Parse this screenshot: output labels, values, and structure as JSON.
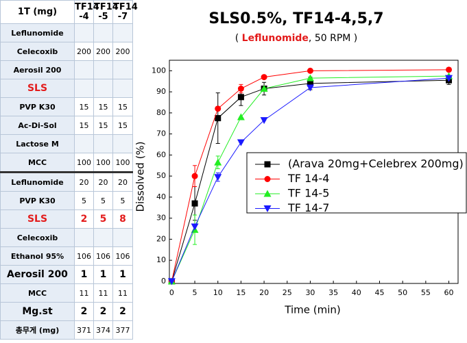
{
  "table": {
    "header": [
      "1T (mg)",
      "TF14\n-4",
      "TF14\n-5",
      "TF14\n-7"
    ],
    "rows": [
      {
        "label": "Leflunomide"
      },
      {
        "label": "Celecoxib",
        "values": [
          200,
          200,
          200
        ]
      },
      {
        "label": "Aerosil 200"
      },
      {
        "label": "SLS",
        "color": "#e31b1b",
        "emphasis": true
      },
      {
        "label": "PVP K30",
        "values": [
          15,
          15,
          15
        ]
      },
      {
        "label": "Ac-Di-Sol",
        "values": [
          15,
          15,
          15
        ]
      },
      {
        "label": "Lactose M"
      },
      {
        "label": "MCC",
        "values": [
          100,
          100,
          100
        ]
      },
      {
        "label": "Leflunomide",
        "values": [
          20,
          20,
          20
        ]
      },
      {
        "label": "PVP K30",
        "values": [
          5,
          5,
          5
        ]
      },
      {
        "label": "SLS",
        "values": [
          2,
          5,
          8
        ],
        "color": "#e31b1b",
        "emphasis": true
      },
      {
        "label": "Celecoxib"
      },
      {
        "label": "Ethanol 95%",
        "values": [
          106,
          106,
          106
        ]
      },
      {
        "label": "Aerosil 200",
        "values": [
          1,
          1,
          1
        ],
        "emphasis": true
      },
      {
        "label": "MCC",
        "values": [
          11,
          11,
          11
        ]
      },
      {
        "label": "Mg.st",
        "values": [
          2,
          2,
          2
        ],
        "emphasis": true
      },
      {
        "label": "총무게 (mg)",
        "values": [
          371,
          374,
          377
        ]
      }
    ]
  },
  "chart_data": {
    "type": "line",
    "title": "SLS0.5%, TF14-4,5,7",
    "subtitle": [
      "( ",
      "Leflunomide",
      ", 50 RPM )"
    ],
    "x_label": "Time (min)",
    "y_label": "Dissolved (%)",
    "x": [
      0,
      5,
      10,
      15,
      20,
      30,
      60
    ],
    "xlim": [
      -0.5,
      62
    ],
    "ylim": [
      -1,
      105
    ],
    "xticks": [
      0,
      5,
      10,
      15,
      20,
      25,
      30,
      35,
      40,
      45,
      50,
      55,
      60
    ],
    "yticks": [
      0,
      10,
      20,
      30,
      40,
      50,
      60,
      70,
      80,
      90,
      100
    ],
    "series": [
      {
        "name": "(Arava 20mg+Celebrex 200mg)",
        "color": "#000000",
        "marker": "square",
        "values": [
          0,
          37,
          77.5,
          87.5,
          91.5,
          94,
          95.5
        ],
        "errors": [
          0,
          8,
          12,
          4,
          3,
          3,
          2
        ]
      },
      {
        "name": "TF 14-4",
        "color": "#ff0000",
        "marker": "circle",
        "values": [
          0,
          50,
          82,
          91.5,
          97,
          100,
          100.5
        ],
        "errors": [
          0,
          5,
          0,
          2,
          0,
          0,
          0
        ]
      },
      {
        "name": "TF 14-5",
        "color": "#22ee22",
        "marker": "triangle-up",
        "values": [
          0,
          24.5,
          56.5,
          78,
          91.5,
          96.5,
          97.5
        ],
        "errors": [
          0,
          7,
          3,
          0,
          0,
          0,
          0
        ]
      },
      {
        "name": "TF 14-7",
        "color": "#1a1aff",
        "marker": "triangle-down",
        "values": [
          0,
          26,
          49.5,
          66,
          76.5,
          92,
          96.5
        ],
        "errors": [
          0,
          0,
          2,
          0,
          0,
          0,
          0
        ]
      }
    ]
  }
}
